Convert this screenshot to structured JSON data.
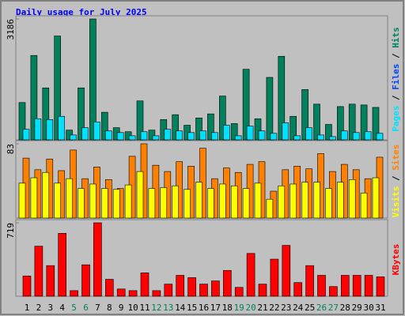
{
  "chart_data": [
    {
      "type": "bar",
      "title": "Daily usage for July 2025",
      "ylim": [
        0,
        3186
      ],
      "yticks": [
        3186
      ],
      "legend_separator": " / ",
      "series": [
        {
          "name": "Hits",
          "color": "#00805c",
          "values": [
            984,
            2224,
            1369,
            2737,
            257,
            1369,
            3186,
            727,
            321,
            214,
            1026,
            257,
            535,
            663,
            385,
            577,
            684,
            1155,
            428,
            1860,
            556,
            1646,
            2202,
            620,
            1326,
            941,
            406,
            877,
            941,
            919,
            855
          ]
        },
        {
          "name": "Files",
          "color": "#0040ff",
          "values": [
            null,
            null,
            null,
            null,
            null,
            null,
            null,
            null,
            null,
            null,
            null,
            null,
            null,
            null,
            null,
            null,
            null,
            null,
            null,
            null,
            null,
            null,
            null,
            null,
            null,
            null,
            null,
            null,
            null,
            null,
            null
          ]
        },
        {
          "name": "Pages",
          "color": "#00e0ff",
          "values": [
            278,
            556,
            535,
            620,
            128,
            321,
            470,
            235,
            192,
            107,
            214,
            107,
            278,
            235,
            192,
            235,
            192,
            385,
            107,
            363,
            235,
            171,
            449,
            107,
            321,
            128,
            86,
            235,
            192,
            214,
            171
          ]
        }
      ]
    },
    {
      "type": "bar",
      "ylim": [
        0,
        83
      ],
      "yticks": [
        83
      ],
      "legend_separator": " / ",
      "series": [
        {
          "name": "Sites",
          "color": "#ff8000",
          "values": [
            67,
            54,
            66,
            53,
            76,
            44,
            57,
            43,
            33,
            69,
            83,
            59,
            52,
            63,
            58,
            78,
            44,
            56,
            51,
            60,
            63,
            30,
            54,
            58,
            55,
            72,
            52,
            60,
            54,
            44,
            68
          ]
        },
        {
          "name": "Visits",
          "color": "#ffff00",
          "values": [
            39,
            45,
            51,
            39,
            44,
            33,
            38,
            33,
            32,
            37,
            52,
            33,
            34,
            36,
            32,
            40,
            33,
            38,
            36,
            33,
            39,
            21,
            36,
            38,
            40,
            40,
            33,
            40,
            43,
            28,
            45
          ]
        }
      ]
    },
    {
      "type": "bar",
      "ylim": [
        0,
        719
      ],
      "yticks": [
        719
      ],
      "categories": [
        "1",
        "2",
        "3",
        "4",
        "5",
        "6",
        "7",
        "8",
        "9",
        "10",
        "11",
        "12",
        "13",
        "14",
        "15",
        "16",
        "17",
        "18",
        "19",
        "20",
        "21",
        "22",
        "23",
        "24",
        "25",
        "26",
        "27",
        "28",
        "29",
        "30",
        "31"
      ],
      "category_colors": [
        "#000000",
        "#000000",
        "#000000",
        "#000000",
        "#00805c",
        "#00805c",
        "#000000",
        "#000000",
        "#000000",
        "#000000",
        "#000000",
        "#00805c",
        "#00805c",
        "#000000",
        "#000000",
        "#000000",
        "#000000",
        "#000000",
        "#00805c",
        "#00805c",
        "#000000",
        "#000000",
        "#000000",
        "#000000",
        "#000000",
        "#00805c",
        "#00805c",
        "#000000",
        "#000000",
        "#000000",
        "#000000"
      ],
      "series": [
        {
          "name": "KBytes",
          "color": "#ff0000",
          "values": [
            198,
            490,
            300,
            616,
            55,
            308,
            719,
            166,
            71,
            55,
            229,
            55,
            119,
            205,
            182,
            119,
            150,
            253,
            87,
            419,
            119,
            363,
            498,
            134,
            300,
            205,
            95,
            205,
            205,
            205,
            190
          ]
        }
      ]
    }
  ]
}
